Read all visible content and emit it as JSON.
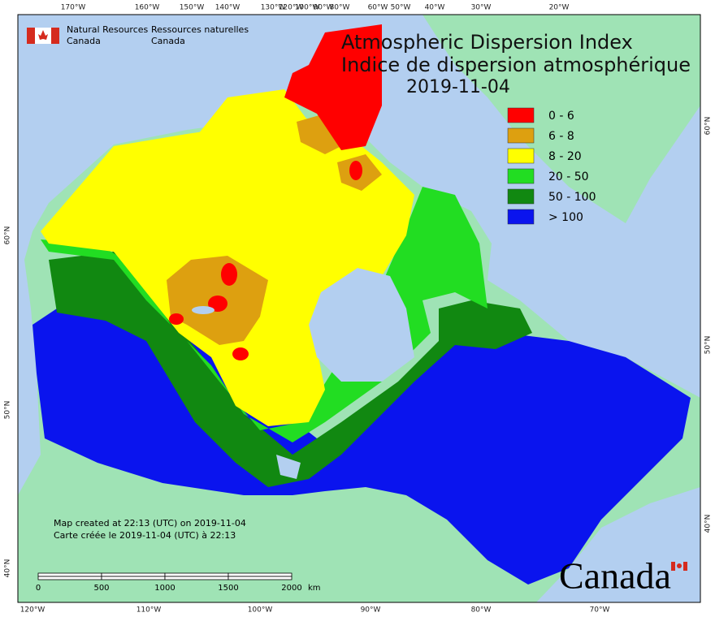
{
  "agency": {
    "en_line1": "Natural Resources",
    "en_line2": "Canada",
    "fr_line1": "Ressources naturelles",
    "fr_line2": "Canada"
  },
  "title": {
    "en": "Atmospheric Dispersion Index",
    "fr": "Indice de dispersion atmosphérique",
    "date": "2019-11-04"
  },
  "legend": [
    {
      "label": "0 - 6",
      "color": "#ff0000"
    },
    {
      "label": "6 - 8",
      "color": "#dda010"
    },
    {
      "label": "8 - 20",
      "color": "#ffff00"
    },
    {
      "label": "20 - 50",
      "color": "#22dd22"
    },
    {
      "label": "50 - 100",
      "color": "#118811"
    },
    {
      "label": "> 100",
      "color": "#0a14ee"
    }
  ],
  "top_labels": [
    "170°W",
    "160°W",
    "150°W",
    "140°W",
    "130°W",
    "120°W",
    "100°W",
    "90°W",
    "80°W",
    "60°W",
    "50°W",
    "40°W",
    "30°W",
    "20°W"
  ],
  "bottom_labels": [
    "120°W",
    "110°W",
    "100°W",
    "90°W",
    "80°W",
    "70°W"
  ],
  "left_labels": [
    "60°N",
    "50°N",
    "40°N"
  ],
  "right_labels": [
    "60°N",
    "50°N",
    "40°N"
  ],
  "scale_bar": {
    "labels": [
      "0",
      "500",
      "1000",
      "1500",
      "2000"
    ],
    "unit": "km"
  },
  "notes": [
    "Map created at 22:13 (UTC) on 2019-11-04",
    "Carte créée le 2019-11-04 (UTC) à 22:13"
  ],
  "wordmark": "Canada"
}
